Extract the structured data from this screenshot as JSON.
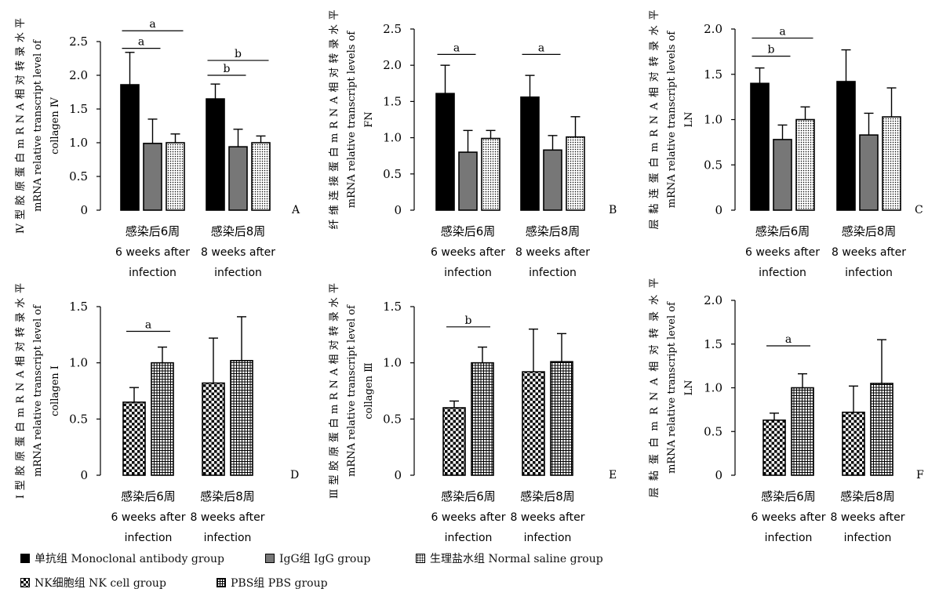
{
  "legend": {
    "mab": "单抗组  Monoclonal  antibody  group",
    "igg": "IgG组  IgG  group",
    "saline": "生理盐水组  Normal  saline  group",
    "nk": "NK细胞组  NK  cell  group",
    "pbs": "PBS组  PBS  group"
  },
  "colors": {
    "black": "#000000",
    "gray": "#777777",
    "white": "#ffffff"
  },
  "chart_data": [
    {
      "type": "bar",
      "panel": "A",
      "ylabel_cn": "Ⅳ型胶原蛋白mRNA相对转录水平",
      "ylabel_en1": "mRNA  relative  transcript  level  of",
      "ylabel_en2": "collagen Ⅳ",
      "ylim": [
        0,
        2.5
      ],
      "yticks": [
        0,
        0.5,
        1.0,
        1.5,
        2.0,
        2.5
      ],
      "ytick_labels": [
        "0",
        "0.5",
        "1.0",
        "1.5",
        "2.0",
        "2.5"
      ],
      "categories": [
        {
          "cn": "感染后6周",
          "en1": "6  weeks  after",
          "en2": "infection"
        },
        {
          "cn": "感染后8周",
          "en1": "8  weeks  after",
          "en2": "infection"
        }
      ],
      "series": [
        {
          "name": "单抗组  Monoclonal  antibody  group",
          "pattern": "black",
          "values": [
            1.86,
            1.65
          ],
          "errors": [
            0.48,
            0.22
          ]
        },
        {
          "name": "IgG组  IgG  group",
          "pattern": "gray",
          "values": [
            0.99,
            0.94
          ],
          "errors": [
            0.36,
            0.26
          ]
        },
        {
          "name": "生理盐水组  Normal  saline  group",
          "pattern": "dots",
          "values": [
            1.0,
            1.0
          ],
          "errors": [
            0.13,
            0.1
          ]
        }
      ],
      "annotations": [
        {
          "group": 0,
          "from": 0,
          "to": 2,
          "level": 2.66,
          "label": "a"
        },
        {
          "group": 0,
          "from": 0,
          "to": 1,
          "level": 2.4,
          "label": "a"
        },
        {
          "group": 1,
          "from": 0,
          "to": 2,
          "level": 2.22,
          "label": "b"
        },
        {
          "group": 1,
          "from": 0,
          "to": 1,
          "level": 2.0,
          "label": "b"
        }
      ]
    },
    {
      "type": "bar",
      "panel": "B",
      "ylabel_cn": "纤维连接蛋白mRNA相对转录水平",
      "ylabel_en1": "mRNA  relative  transcript  levels  of",
      "ylabel_en2": "FN",
      "ylim": [
        0,
        2.5
      ],
      "yticks": [
        0,
        0.5,
        1.0,
        1.5,
        2.0,
        2.5
      ],
      "ytick_labels": [
        "0",
        "0.5",
        "1.0",
        "1.5",
        "2.0",
        "2.5"
      ],
      "categories": [
        {
          "cn": "感染后6周",
          "en1": "6  weeks  after",
          "en2": "infection"
        },
        {
          "cn": "感染后8周",
          "en1": "8  weeks  after",
          "en2": "infection"
        }
      ],
      "series": [
        {
          "name": "单抗组  Monoclonal  antibody  group",
          "pattern": "black",
          "values": [
            1.61,
            1.56
          ],
          "errors": [
            0.39,
            0.3
          ]
        },
        {
          "name": "IgG组  IgG  group",
          "pattern": "gray",
          "values": [
            0.8,
            0.83
          ],
          "errors": [
            0.3,
            0.2
          ]
        },
        {
          "name": "生理盐水组  Normal  saline  group",
          "pattern": "dots",
          "values": [
            0.99,
            1.01
          ],
          "errors": [
            0.11,
            0.28
          ]
        }
      ],
      "annotations": [
        {
          "group": 0,
          "from": 0,
          "to": 1,
          "level": 2.15,
          "label": "a"
        },
        {
          "group": 1,
          "from": 0,
          "to": 1,
          "level": 2.15,
          "label": "a"
        }
      ]
    },
    {
      "type": "bar",
      "panel": "C",
      "ylabel_cn": "层黏连蛋白mRNA相对转录水平",
      "ylabel_en1": "mRNA  relative  transcript  levels  of",
      "ylabel_en2": "LN",
      "ylim": [
        0,
        2.0
      ],
      "yticks": [
        0,
        0.5,
        1.0,
        1.5,
        2.0
      ],
      "ytick_labels": [
        "0",
        "0.5",
        "1.0",
        "1.5",
        "2.0"
      ],
      "categories": [
        {
          "cn": "感染后6周",
          "en1": "6  weeks  after",
          "en2": "infection"
        },
        {
          "cn": "感染后8周",
          "en1": "8  weeks  after",
          "en2": "infection"
        }
      ],
      "series": [
        {
          "name": "单抗组  Monoclonal  antibody  group",
          "pattern": "black",
          "values": [
            1.4,
            1.42
          ],
          "errors": [
            0.17,
            0.35
          ]
        },
        {
          "name": "IgG组  IgG  group",
          "pattern": "gray",
          "values": [
            0.78,
            0.83
          ],
          "errors": [
            0.16,
            0.24
          ]
        },
        {
          "name": "生理盐水组  Normal  saline  group",
          "pattern": "dots",
          "values": [
            1.0,
            1.03
          ],
          "errors": [
            0.14,
            0.32
          ]
        }
      ],
      "annotations": [
        {
          "group": 0,
          "from": 0,
          "to": 2,
          "level": 1.9,
          "label": "a"
        },
        {
          "group": 0,
          "from": 0,
          "to": 1,
          "level": 1.7,
          "label": "b"
        }
      ]
    },
    {
      "type": "bar",
      "panel": "D",
      "ylabel_cn": "Ⅰ型胶原蛋白mRNA相对转录水平",
      "ylabel_en1": "mRNA  relative  transcript  level  of",
      "ylabel_en2": "collagen Ⅰ",
      "ylim": [
        0,
        1.5
      ],
      "yticks": [
        0,
        0.5,
        1.0,
        1.5
      ],
      "ytick_labels": [
        "0",
        "0.5",
        "1.0",
        "1.5"
      ],
      "categories": [
        {
          "cn": "感染后6周",
          "en1": "6  weeks  after",
          "en2": "infection"
        },
        {
          "cn": "感染后8周",
          "en1": "8  weeks  after",
          "en2": "infection"
        }
      ],
      "series": [
        {
          "name": "NK细胞组  NK  cell  group",
          "pattern": "check",
          "values": [
            0.65,
            0.82
          ],
          "errors": [
            0.13,
            0.4
          ]
        },
        {
          "name": "PBS组  PBS  group",
          "pattern": "grid",
          "values": [
            1.0,
            1.02
          ],
          "errors": [
            0.14,
            0.39
          ]
        }
      ],
      "annotations": [
        {
          "group": 0,
          "from": 0,
          "to": 1,
          "level": 1.28,
          "label": "a"
        }
      ]
    },
    {
      "type": "bar",
      "panel": "E",
      "ylabel_cn": "Ⅲ型胶原蛋白mRNA相对转录水平",
      "ylabel_en1": "mRNA  relative  transcript  level  of",
      "ylabel_en2": "collagen Ⅲ",
      "ylim": [
        0,
        1.5
      ],
      "yticks": [
        0,
        0.5,
        1.0,
        1.5
      ],
      "ytick_labels": [
        "0",
        "0.5",
        "1.0",
        "1.5"
      ],
      "categories": [
        {
          "cn": "感染后6周",
          "en1": "6  weeks  after",
          "en2": "infection"
        },
        {
          "cn": "感染后8周",
          "en1": "8  weeks  after",
          "en2": "infection"
        }
      ],
      "series": [
        {
          "name": "NK细胞组  NK  cell  group",
          "pattern": "check",
          "values": [
            0.6,
            0.92
          ],
          "errors": [
            0.06,
            0.38
          ]
        },
        {
          "name": "PBS组  PBS  group",
          "pattern": "grid",
          "values": [
            1.0,
            1.01
          ],
          "errors": [
            0.14,
            0.25
          ]
        }
      ],
      "annotations": [
        {
          "group": 0,
          "from": 0,
          "to": 1,
          "level": 1.32,
          "label": "b"
        }
      ]
    },
    {
      "type": "bar",
      "panel": "F",
      "ylabel_cn": "层黏蛋白mRNA相对转录水平",
      "ylabel_en1": "mRNA  relative  transcript  level  of",
      "ylabel_en2": "LN",
      "ylim": [
        0,
        2.0
      ],
      "yticks": [
        0,
        0.5,
        1.0,
        1.5,
        2.0
      ],
      "ytick_labels": [
        "0",
        "0.5",
        "1.0",
        "1.5",
        "2.0"
      ],
      "categories": [
        {
          "cn": "感染后6周",
          "en1": "6  weeks  after",
          "en2": "infection"
        },
        {
          "cn": "感染后8周",
          "en1": "8  weeks  after",
          "en2": "infection"
        }
      ],
      "series": [
        {
          "name": "NK细胞组  NK  cell  group",
          "pattern": "check",
          "values": [
            0.63,
            0.72
          ],
          "errors": [
            0.08,
            0.3
          ]
        },
        {
          "name": "PBS组  PBS  group",
          "pattern": "grid",
          "values": [
            1.0,
            1.05
          ],
          "errors": [
            0.16,
            0.5
          ]
        }
      ],
      "annotations": [
        {
          "group": 0,
          "from": 0,
          "to": 1,
          "level": 1.48,
          "label": "a"
        }
      ]
    }
  ]
}
